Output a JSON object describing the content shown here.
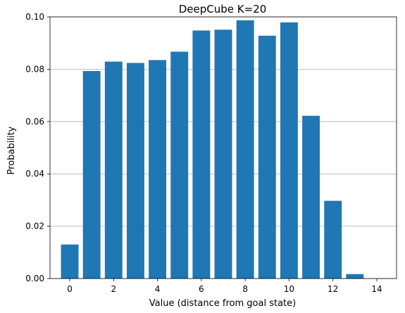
{
  "chart_data": {
    "type": "bar",
    "title": "DeepCube K=20",
    "xlabel": "Value (distance from goal state)",
    "ylabel": "Probability",
    "categories": [
      0,
      1,
      2,
      3,
      4,
      5,
      6,
      7,
      8,
      9,
      10,
      11,
      12,
      13
    ],
    "values": [
      0.013,
      0.0793,
      0.0829,
      0.0824,
      0.0835,
      0.0867,
      0.0948,
      0.0951,
      0.0987,
      0.0928,
      0.0979,
      0.0622,
      0.0297,
      0.0017
    ],
    "xlim": [
      -0.9,
      14.9
    ],
    "ylim": [
      0,
      0.1
    ],
    "xticks": [
      0,
      2,
      4,
      6,
      8,
      10,
      12,
      14
    ],
    "xtick_labels": [
      "0",
      "2",
      "4",
      "6",
      "8",
      "10",
      "12",
      "14"
    ],
    "yticks": [
      0,
      0.02,
      0.04,
      0.06,
      0.08,
      0.1
    ],
    "ytick_labels": [
      "0.00",
      "0.02",
      "0.04",
      "0.06",
      "0.08",
      "0.10"
    ],
    "grid": "horizontal",
    "bar_color": "#1f77b4"
  }
}
